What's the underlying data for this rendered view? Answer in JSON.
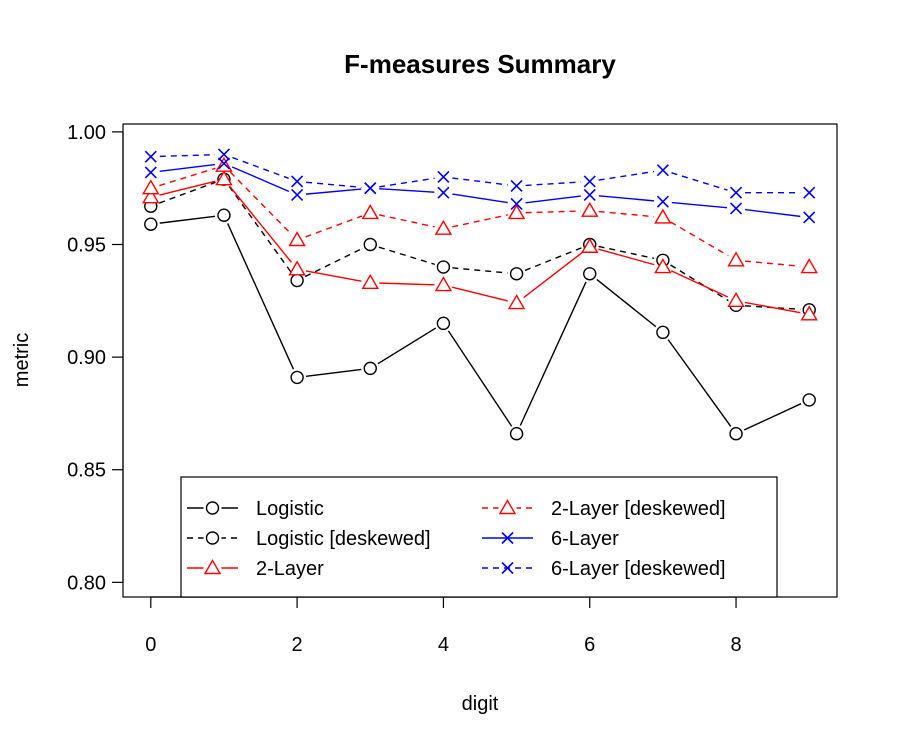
{
  "chart_data": {
    "type": "line",
    "title": "F-measures Summary",
    "xlabel": "digit",
    "ylabel": "metric",
    "xlim": [
      -0.38,
      9.38
    ],
    "ylim": [
      0.7935,
      1.0035
    ],
    "x_ticks": [
      0,
      2,
      4,
      6,
      8
    ],
    "y_ticks": [
      0.8,
      0.85,
      0.9,
      0.95,
      1.0
    ],
    "y_tick_labels": [
      "0.80",
      "0.85",
      "0.90",
      "0.95",
      "1.00"
    ],
    "x": [
      0,
      1,
      2,
      3,
      4,
      5,
      6,
      7,
      8,
      9
    ],
    "legend_position": "bottom",
    "series": [
      {
        "name": "Logistic",
        "color": "#000000",
        "dashed": false,
        "marker": "circle",
        "values": [
          0.959,
          0.963,
          0.891,
          0.895,
          0.915,
          0.866,
          0.937,
          0.911,
          0.866,
          0.881
        ]
      },
      {
        "name": "Logistic [deskewed]",
        "color": "#000000",
        "dashed": true,
        "marker": "circle",
        "values": [
          0.967,
          0.979,
          0.934,
          0.95,
          0.94,
          0.937,
          0.95,
          0.943,
          0.923,
          0.921
        ]
      },
      {
        "name": "2-Layer",
        "color": "#ff0000",
        "dashed": false,
        "marker": "triangle",
        "values": [
          0.971,
          0.979,
          0.939,
          0.933,
          0.932,
          0.924,
          0.949,
          0.94,
          0.925,
          0.919
        ]
      },
      {
        "name": "2-Layer [deskewed]",
        "color": "#ff0000",
        "dashed": true,
        "marker": "triangle",
        "values": [
          0.975,
          0.985,
          0.952,
          0.964,
          0.957,
          0.964,
          0.965,
          0.962,
          0.943,
          0.94
        ]
      },
      {
        "name": "6-Layer",
        "color": "#0000ff",
        "dashed": false,
        "marker": "x",
        "values": [
          0.982,
          0.986,
          0.972,
          0.975,
          0.973,
          0.968,
          0.972,
          0.969,
          0.966,
          0.962
        ]
      },
      {
        "name": "6-Layer [deskewed]",
        "color": "#0000ff",
        "dashed": true,
        "marker": "x",
        "values": [
          0.989,
          0.99,
          0.978,
          0.975,
          0.98,
          0.976,
          0.978,
          0.983,
          0.973,
          0.973
        ]
      }
    ]
  }
}
